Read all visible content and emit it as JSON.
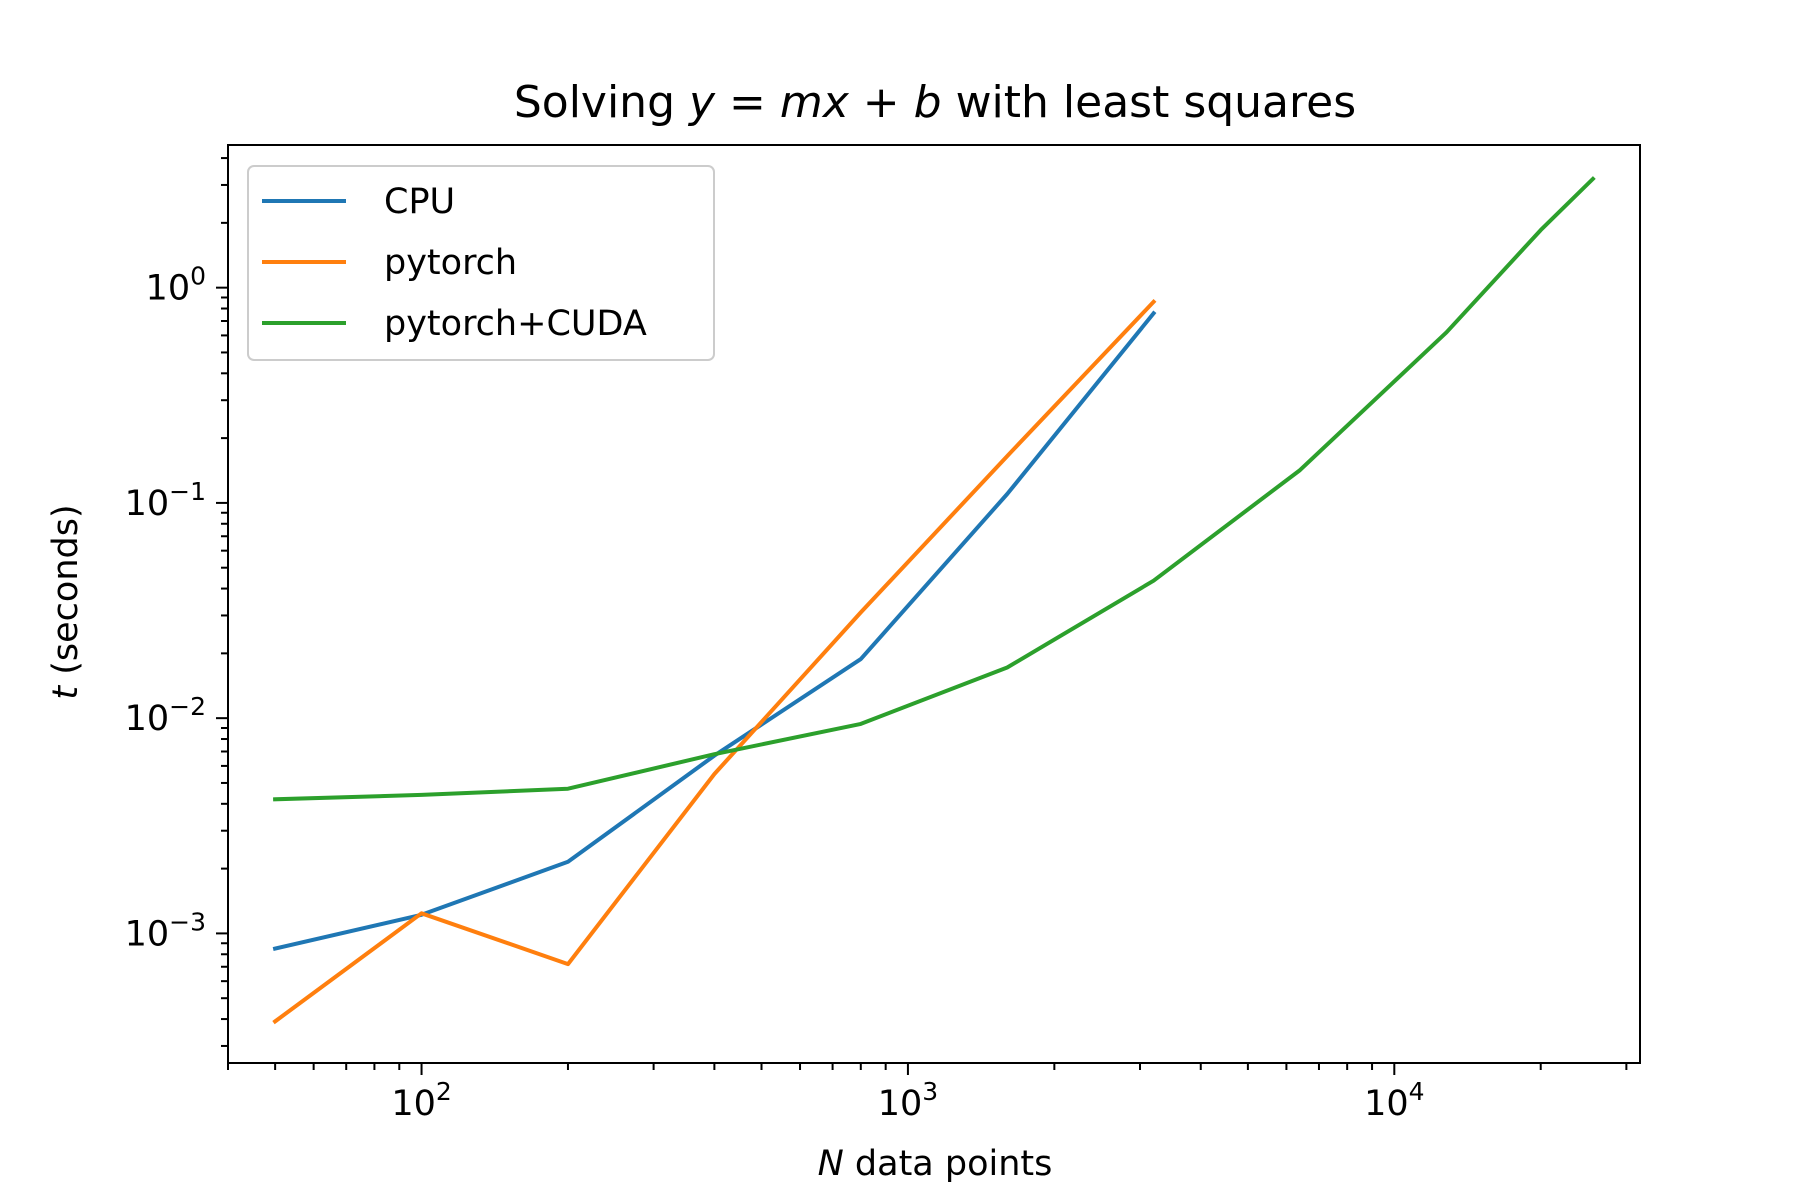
{
  "chart_data": {
    "type": "line",
    "title": {
      "pre": "Solving ",
      "y": "y",
      "eq": " = ",
      "m": "m",
      "x": "x",
      "plus": " + ",
      "b": "b",
      "post": " with least squares"
    },
    "xlabel": {
      "var": "N",
      "text": " data points"
    },
    "ylabel": {
      "var": "t",
      "text": " (seconds)"
    },
    "xscale": "log",
    "yscale": "log",
    "xlim": [
      40,
      32000
    ],
    "ylim": [
      0.00025,
      4.6
    ],
    "grid": false,
    "legend": {
      "position": "top-left",
      "frame": true
    },
    "x_major_ticks": [
      {
        "value": 100,
        "base": "10",
        "exp": "2"
      },
      {
        "value": 1000,
        "base": "10",
        "exp": "3"
      },
      {
        "value": 10000,
        "base": "10",
        "exp": "4"
      }
    ],
    "y_major_ticks": [
      {
        "value": 0.001,
        "base": "10",
        "exp": "−3"
      },
      {
        "value": 0.01,
        "base": "10",
        "exp": "−2"
      },
      {
        "value": 0.1,
        "base": "10",
        "exp": "−1"
      },
      {
        "value": 1,
        "base": "10",
        "exp": "0"
      }
    ],
    "series": [
      {
        "name": "CPU",
        "color": "#1f77b4",
        "x": [
          50,
          100,
          200,
          400,
          800,
          1600,
          3200
        ],
        "y": [
          0.00085,
          0.00122,
          0.00215,
          0.0067,
          0.0188,
          0.11,
          0.76
        ]
      },
      {
        "name": "pytorch",
        "color": "#ff7f0e",
        "x": [
          50,
          100,
          200,
          400,
          800,
          1600,
          3200
        ],
        "y": [
          0.00039,
          0.00124,
          0.00072,
          0.0055,
          0.031,
          0.165,
          0.86
        ]
      },
      {
        "name": "pytorch+CUDA",
        "color": "#2ca02c",
        "x": [
          50,
          100,
          200,
          400,
          800,
          1600,
          3200,
          6400,
          12800,
          20000,
          25600
        ],
        "y": [
          0.0042,
          0.0044,
          0.0047,
          0.0068,
          0.0094,
          0.0172,
          0.0435,
          0.142,
          0.62,
          1.85,
          3.2
        ]
      }
    ]
  }
}
